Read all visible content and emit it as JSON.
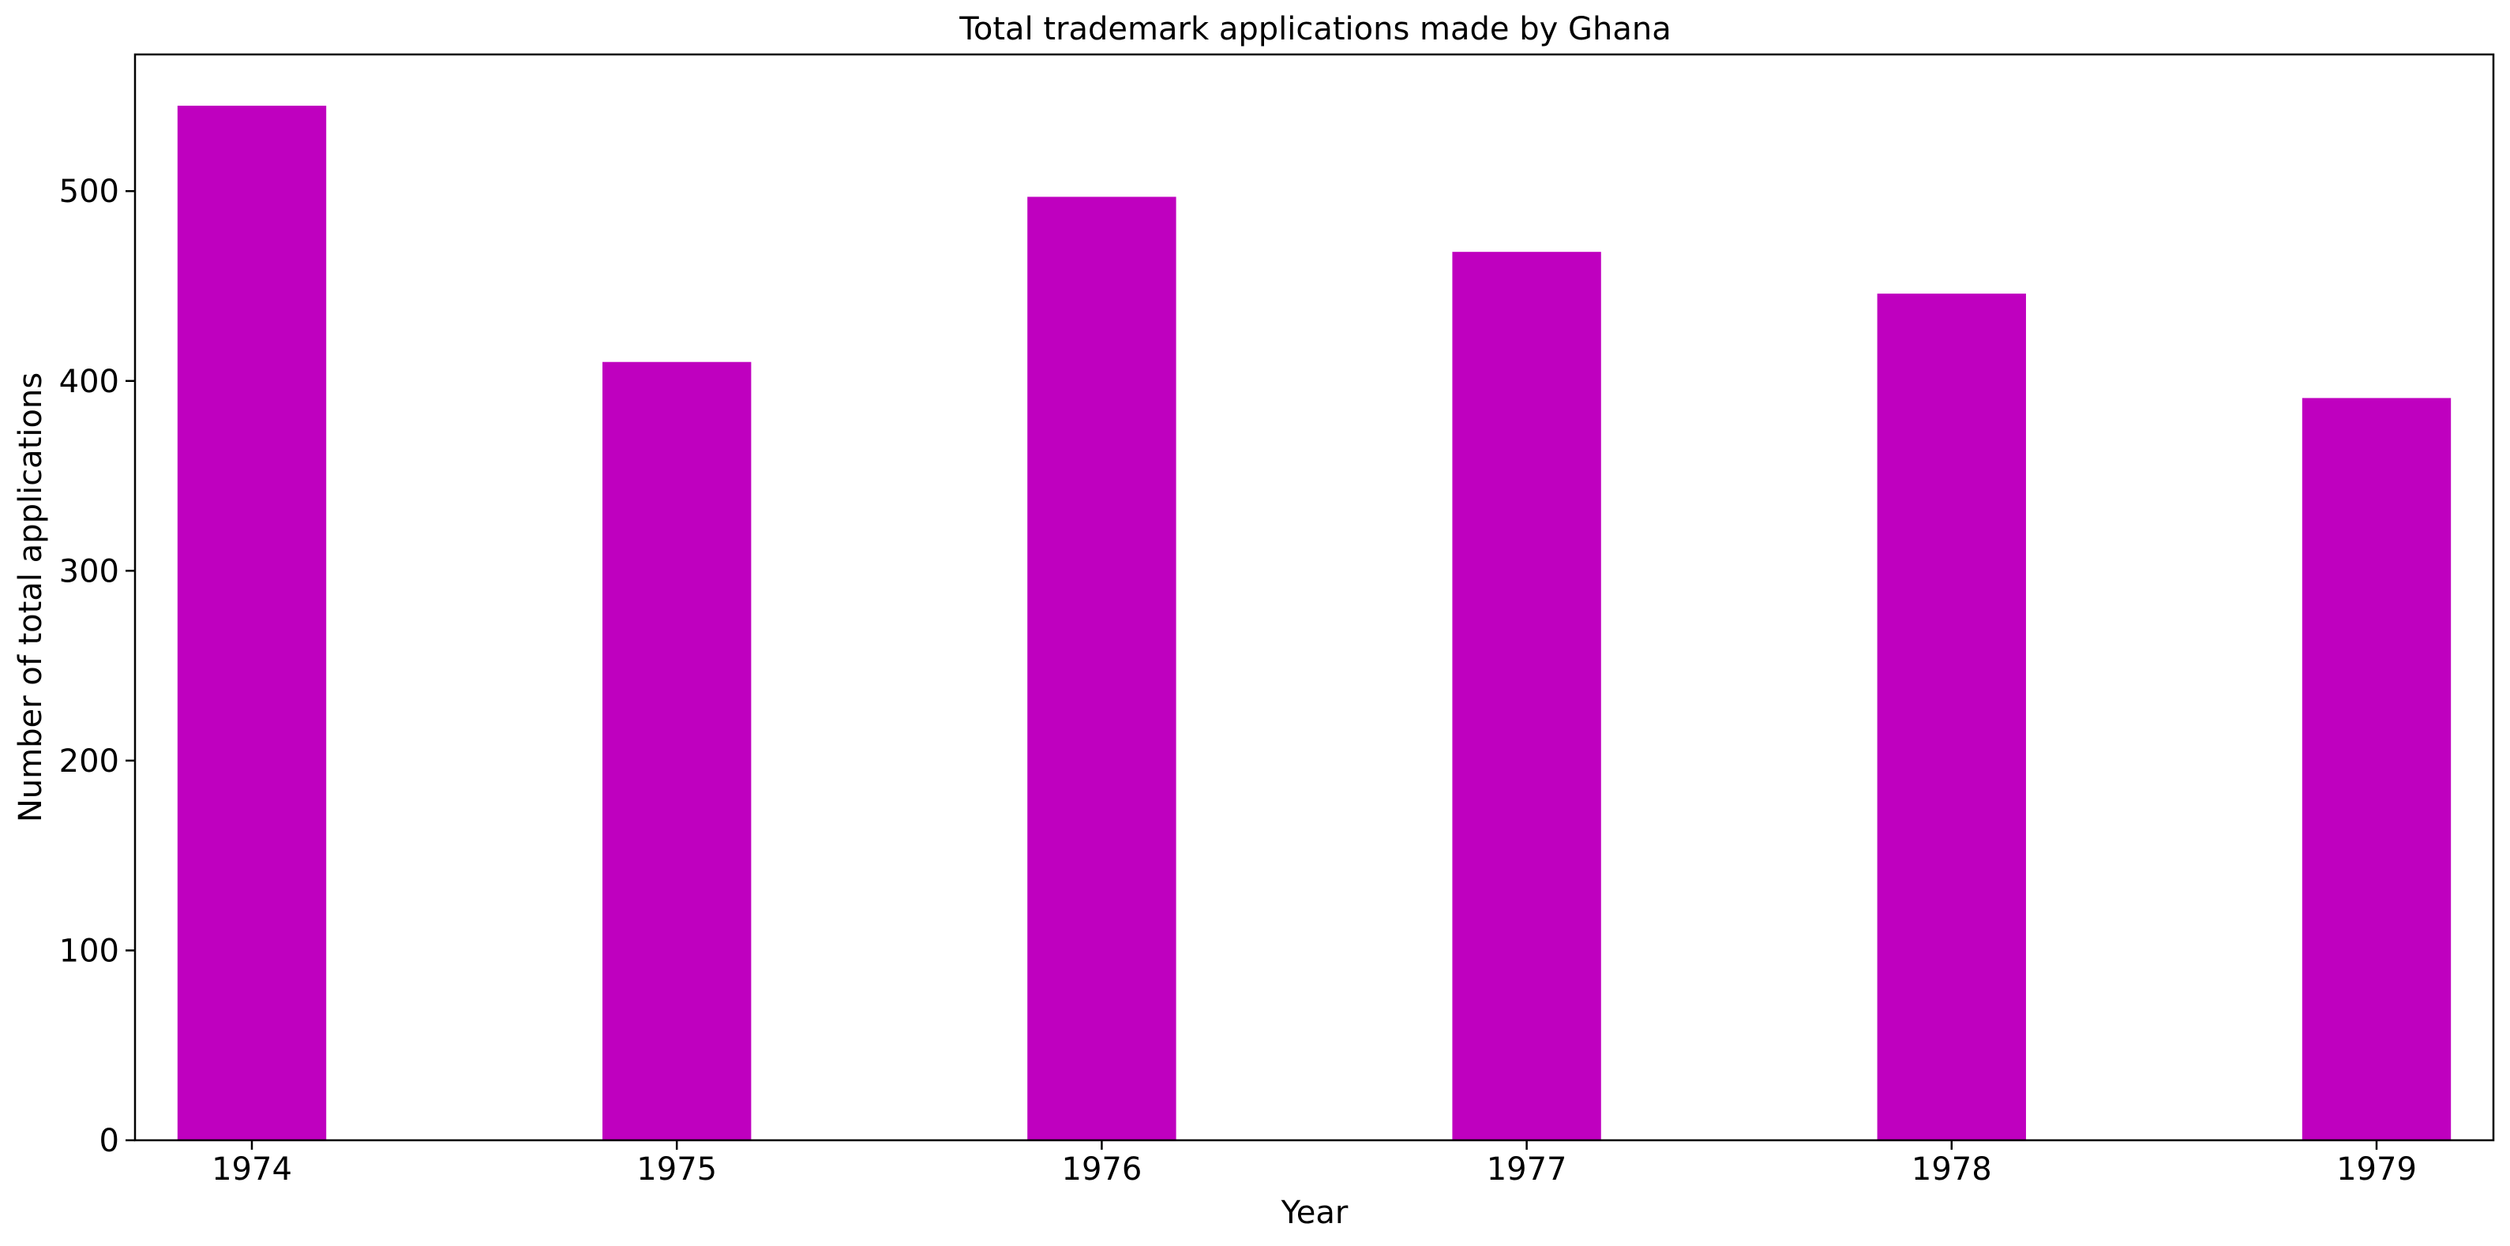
{
  "chart_data": {
    "type": "bar",
    "title": "Total trademark applications made by Ghana",
    "xlabel": "Year",
    "ylabel": "Number of total applications",
    "categories": [
      "1974",
      "1975",
      "1976",
      "1977",
      "1978",
      "1979"
    ],
    "values": [
      545,
      410,
      497,
      468,
      446,
      391
    ],
    "ylim": [
      0,
      572
    ],
    "yticks": [
      0,
      100,
      200,
      300,
      400,
      500
    ],
    "ytick_labels": [
      "0",
      "100",
      "200",
      "300",
      "400",
      "500"
    ],
    "bar_color": "#bf00bf",
    "grid": false,
    "legend": "none"
  }
}
